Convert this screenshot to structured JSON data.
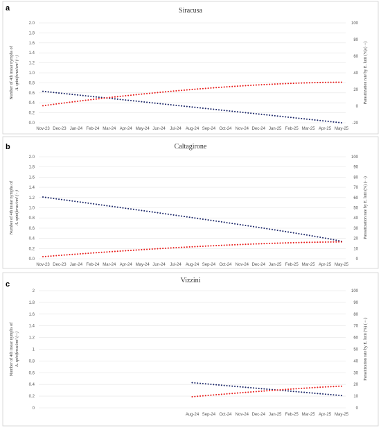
{
  "colors": {
    "series_a": "#1f2a6b",
    "series_b": "#e8201e",
    "red_label": "#d9261c"
  },
  "chart_data": [
    {
      "type": "scatter",
      "panel": "a",
      "title": "Siracusa",
      "ylabel_line1": "Number of 4th instar nymphs of",
      "ylabel_line2": "A. spiniferus/cm² (···)",
      "y2label": "Parasitization rate by E. lutii (%) (···)",
      "x_ticks": [
        "Nov-23",
        "Dec-23",
        "Jan-24",
        "Feb-24",
        "Mar-24",
        "Apr-24",
        "May-24",
        "Jun-24",
        "Jul-24",
        "Aug-24",
        "Sep-24",
        "Oct-24",
        "Nov-24",
        "Dec-24",
        "Jan-25",
        "Feb-25",
        "Mar-25",
        "Apr-25",
        "May-25"
      ],
      "y_ticks": [
        "0.0",
        "0.2",
        "0.4",
        "0.6",
        "0.8",
        "1.0",
        "1.2",
        "1.4",
        "1.6",
        "1.8",
        "2.0"
      ],
      "y2_ticks": [
        "-20",
        "0",
        "20",
        "40",
        "60",
        "80",
        "100"
      ],
      "ylim": [
        0,
        2
      ],
      "y2lim": [
        -20,
        100
      ],
      "series": [
        {
          "axis": "left",
          "x": [
            0,
            18
          ],
          "y": [
            0.63,
            0.0
          ],
          "curve": 0
        },
        {
          "axis": "right",
          "x": [
            0,
            18
          ],
          "y": [
            0.5,
            28.7
          ],
          "curve": 0.35
        }
      ]
    },
    {
      "type": "scatter",
      "panel": "b",
      "title": "Caltagirone",
      "ylabel_line1": "Number of 4th instar nymphs of",
      "ylabel_line2": "A. spiniferus/cm² (···)",
      "y2label": "Parasitization rate by E. lutii (%) (···)",
      "x_ticks": [
        "Nov-23",
        "Dec-23",
        "Jan-24",
        "Feb-24",
        "Mar-24",
        "Apr-24",
        "May-24",
        "Jun-24",
        "Jul-24",
        "Aug-24",
        "Sep-24",
        "Oct-24",
        "Nov-24",
        "Dec-24",
        "Jan-25",
        "Feb-25",
        "Mar-25",
        "Apr-25",
        "May-25"
      ],
      "y_ticks": [
        "0.0",
        "0.2",
        "0.4",
        "0.6",
        "0.8",
        "1.0",
        "1.2",
        "1.4",
        "1.6",
        "1.8",
        "2.0"
      ],
      "y2_ticks": [
        "0",
        "10",
        "20",
        "30",
        "40",
        "50",
        "60",
        "70",
        "80",
        "90",
        "100"
      ],
      "ylim": [
        0,
        2
      ],
      "y2lim": [
        0,
        100
      ],
      "series": [
        {
          "axis": "left",
          "x": [
            0,
            18
          ],
          "y": [
            1.21,
            0.34
          ],
          "curve": -0.05
        },
        {
          "axis": "right",
          "x": [
            0,
            18
          ],
          "y": [
            2.0,
            16.5
          ],
          "curve": 0.3
        }
      ]
    },
    {
      "type": "scatter",
      "panel": "c",
      "title": "Vizzini",
      "ylabel_line1": "Number of 4th instar nymphs of",
      "ylabel_line2": "A. spiniferus/cm² (···)",
      "y2label": "Parasitization rate by E. lutii (%) (···)",
      "x_ticks": [
        "Aug-24",
        "Sep-24",
        "Oct-24",
        "Nov-24",
        "Dec-24",
        "Jan-25",
        "Feb-25",
        "Mar-25",
        "Apr-25",
        "May-25"
      ],
      "x_tick_offset": 9,
      "x_total": 19,
      "y_ticks": [
        "0",
        "0.2",
        "0.4",
        "0.6",
        "0.8",
        "1",
        "1.2",
        "1.4",
        "1.6",
        "1.8",
        "2"
      ],
      "y2_ticks": [
        "0",
        "10",
        "20",
        "30",
        "40",
        "50",
        "60",
        "70",
        "80",
        "90",
        "100"
      ],
      "ylim": [
        0,
        2
      ],
      "y2lim": [
        0,
        100
      ],
      "series": [
        {
          "axis": "left",
          "x": [
            9,
            18
          ],
          "y": [
            0.43,
            0.21
          ],
          "curve": 0
        },
        {
          "axis": "right",
          "x": [
            9,
            18
          ],
          "y": [
            9.5,
            18.5
          ],
          "curve": 0.1
        }
      ]
    }
  ]
}
